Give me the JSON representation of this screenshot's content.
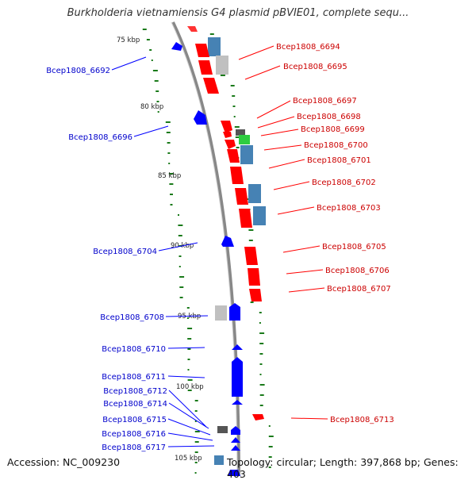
{
  "title": "Burkholderia vietnamiensis G4 plasmid pBVIE01, complete sequ...",
  "accession": "Accession: NC_009230",
  "topology": "Topology: circular; Length: 397,868 bp; Genes: 403",
  "colors": {
    "forward": "#ff0000",
    "reverse": "#0000ff",
    "rna": "#4682b4",
    "hypothetical": "#c0c0c0",
    "other": "#555555",
    "highlight": "#2ecc40",
    "backbone": "#888888",
    "gc_dots": "#1a7a1a"
  },
  "scale_ticks": [
    "75 kbp",
    "80 kbp",
    "85 kbp",
    "90 kbp",
    "95 kbp",
    "100 kbp",
    "105 kbp"
  ],
  "genes_right": [
    "Bcep1808_6694",
    "Bcep1808_6695",
    "Bcep1808_6697",
    "Bcep1808_6698",
    "Bcep1808_6699",
    "Bcep1808_6700",
    "Bcep1808_6701",
    "Bcep1808_6702",
    "Bcep1808_6703",
    "Bcep1808_6705",
    "Bcep1808_6706",
    "Bcep1808_6707",
    "Bcep1808_6713"
  ],
  "genes_left": [
    "Bcep1808_6692",
    "Bcep1808_6696",
    "Bcep1808_6704",
    "Bcep1808_6708",
    "Bcep1808_6710",
    "Bcep1808_6711",
    "Bcep1808_6712",
    "Bcep1808_6714",
    "Bcep1808_6715",
    "Bcep1808_6716",
    "Bcep1808_6717"
  ]
}
